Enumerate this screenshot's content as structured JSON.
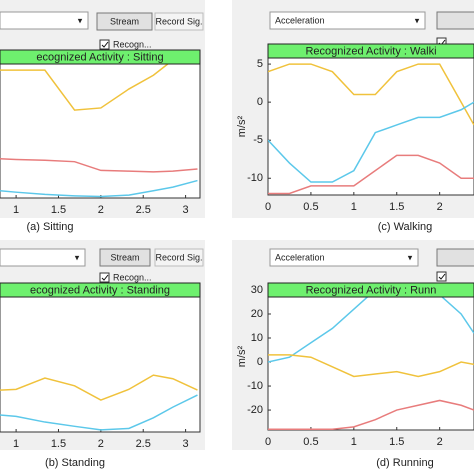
{
  "panels": [
    {
      "buttons": [
        "Stream",
        "Record Sig."
      ],
      "checkbox": "Recogn...",
      "banner": "ecognized Activity : Sitting",
      "caption": "(a) Sitting"
    },
    {
      "dropdown": "Acceleration",
      "banner": "Recognized Activity : Walki",
      "caption": "(c) Walking"
    },
    {
      "buttons": [
        "Stream",
        "Record Sig."
      ],
      "checkbox": "Recogn...",
      "banner": "ecognized Activity : Standing",
      "caption": "(b) Standing"
    },
    {
      "dropdown": "Acceleration",
      "banner": "Recognized Activity : Runn",
      "caption": "(d) Running"
    }
  ],
  "chart_data": [
    {
      "type": "line",
      "x": [
        0.81,
        1.0,
        1.34,
        1.69,
        2.0,
        2.33,
        2.62,
        2.85,
        3.14
      ],
      "xlim": [
        0.81,
        3.17
      ],
      "xticks": [
        1,
        1.5,
        2,
        2.5,
        3
      ],
      "ylim": [
        -12,
        7
      ],
      "yticks": [],
      "series": [
        {
          "color": "#f0c23c",
          "values": [
            5.6,
            5.6,
            5.6,
            0.1,
            0.4,
            3,
            4.9,
            7,
            7
          ]
        },
        {
          "color": "#e87c7c",
          "values": [
            -6.6,
            -6.7,
            -6.8,
            -7,
            -8.2,
            -8.3,
            -8.4,
            -8.3,
            -8
          ]
        },
        {
          "color": "#5cc8ea",
          "values": [
            -11,
            -11.2,
            -11.5,
            -11.7,
            -11.8,
            -11.6,
            -11,
            -10.5,
            -9.6
          ]
        }
      ]
    },
    {
      "type": "line",
      "ylabel": "m/s²",
      "x": [
        0,
        0.25,
        0.5,
        0.75,
        1,
        1.25,
        1.5,
        1.75,
        2,
        2.25,
        2.4
      ],
      "xlim": [
        0,
        2.4
      ],
      "xticks": [
        0,
        0.5,
        1,
        1.5,
        2
      ],
      "ylim": [
        -12.2,
        5.8
      ],
      "yticks": [
        5,
        0,
        -5,
        -10
      ],
      "series": [
        {
          "color": "#f0c23c",
          "values": [
            4,
            5,
            5,
            4,
            1,
            1,
            4,
            5,
            5,
            0,
            -3
          ]
        },
        {
          "color": "#5cc8ea",
          "values": [
            -5,
            -8,
            -10.5,
            -10.5,
            -9,
            -4,
            -3,
            -2,
            -2,
            -1,
            0
          ]
        },
        {
          "color": "#e87c7c",
          "values": [
            -12,
            -12,
            -11,
            -11,
            -11,
            -9,
            -7,
            -7,
            -8,
            -10,
            -10
          ]
        }
      ]
    },
    {
      "type": "line",
      "x": [
        0.81,
        1.0,
        1.34,
        1.69,
        2.0,
        2.33,
        2.62,
        2.85,
        3.14
      ],
      "xlim": [
        0.81,
        3.17
      ],
      "xticks": [
        1,
        1.5,
        2,
        2.5,
        3
      ],
      "ylim": [
        -12,
        7
      ],
      "yticks": [],
      "series": [
        {
          "color": "#f0c23c",
          "values": [
            -6.1,
            -6,
            -4.4,
            -5.5,
            -7.5,
            -6,
            -4,
            -4.5,
            -6.1
          ]
        },
        {
          "color": "#5cc8ea",
          "values": [
            -9.6,
            -9.8,
            -10.6,
            -11.2,
            -11.7,
            -11.5,
            -10,
            -8.5,
            -6.8
          ]
        }
      ]
    },
    {
      "type": "line",
      "ylabel": "m/s²",
      "x": [
        0,
        0.25,
        0.5,
        0.75,
        1,
        1.25,
        1.5,
        1.75,
        2,
        2.25,
        2.4
      ],
      "xlim": [
        0,
        2.4
      ],
      "xticks": [
        0,
        0.5,
        1,
        1.5,
        2
      ],
      "ylim": [
        -28.3,
        32.9
      ],
      "yticks": [
        30,
        20,
        10,
        0,
        -10,
        -20
      ],
      "series": [
        {
          "color": "#5cc8ea",
          "values": [
            0,
            2,
            8,
            14,
            22,
            30,
            32,
            30,
            28,
            20,
            12
          ]
        },
        {
          "color": "#f0c23c",
          "values": [
            3,
            3,
            2,
            -2,
            -6,
            -5,
            -4,
            -6,
            -4,
            0,
            -1
          ]
        },
        {
          "color": "#e87c7c",
          "values": [
            -28,
            -28,
            -28,
            -28,
            -27,
            -24,
            -20,
            -18,
            -16,
            -18,
            -20
          ]
        }
      ]
    }
  ]
}
